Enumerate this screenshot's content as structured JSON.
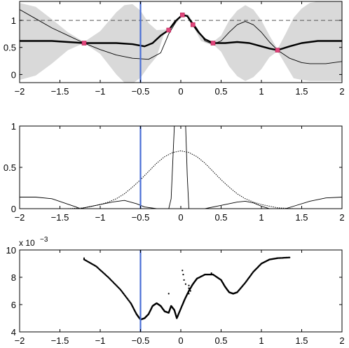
{
  "chart_data": [
    {
      "type": "line",
      "panel": "top",
      "xlim": [
        -2,
        2
      ],
      "ylim": [
        -0.15,
        1.35
      ],
      "x_ticks": [
        -2,
        -1.5,
        -1,
        -0.5,
        0,
        0.5,
        1,
        1.5,
        2
      ],
      "x_tick_labels": [
        "−2",
        "−1.5",
        "−1",
        "−0.5",
        "0",
        "0.5",
        "1",
        "1.5",
        "2"
      ],
      "y_ticks": [
        0,
        0.5,
        1
      ],
      "y_tick_labels": [
        "0",
        "0.5",
        "1"
      ],
      "reference_line": {
        "y": 1,
        "style": "dashed"
      },
      "vertical_marker": {
        "x": -0.5,
        "color": "#4a6fd6"
      },
      "observations": {
        "x": [
          -1.2,
          -0.15,
          0.02,
          0.15,
          0.4,
          1.2
        ],
        "y": [
          0.58,
          0.82,
          1.1,
          0.92,
          0.58,
          0.45
        ],
        "color": "#e0457b"
      },
      "series": [
        {
          "style": "bold-mean",
          "x": [
            -2,
            -1.8,
            -1.6,
            -1.4,
            -1.2,
            -1.0,
            -0.8,
            -0.6,
            -0.45,
            -0.35,
            -0.25,
            -0.15,
            -0.07,
            0.02,
            0.08,
            0.15,
            0.22,
            0.3,
            0.4,
            0.55,
            0.7,
            0.85,
            1.0,
            1.1,
            1.2,
            1.35,
            1.5,
            1.7,
            2.0
          ],
          "y": [
            0.62,
            0.62,
            0.62,
            0.6,
            0.58,
            0.58,
            0.58,
            0.56,
            0.52,
            0.58,
            0.72,
            0.82,
            0.98,
            1.1,
            1.08,
            0.92,
            0.78,
            0.65,
            0.58,
            0.58,
            0.6,
            0.58,
            0.52,
            0.48,
            0.45,
            0.52,
            0.58,
            0.62,
            0.62
          ]
        },
        {
          "style": "thin-function",
          "x": [
            -2,
            -1.8,
            -1.6,
            -1.4,
            -1.2,
            -1.0,
            -0.8,
            -0.6,
            -0.4,
            -0.25,
            -0.15,
            -0.05,
            0.02,
            0.1,
            0.2,
            0.3,
            0.4,
            0.5,
            0.6,
            0.7,
            0.8,
            0.9,
            1.0,
            1.1,
            1.2,
            1.35,
            1.5,
            1.6,
            1.8,
            2.0
          ],
          "y": [
            1.2,
            1.03,
            0.86,
            0.72,
            0.58,
            0.46,
            0.36,
            0.3,
            0.28,
            0.4,
            0.75,
            1.0,
            1.12,
            1.05,
            0.85,
            0.62,
            0.56,
            0.62,
            0.78,
            0.92,
            0.98,
            0.92,
            0.78,
            0.6,
            0.45,
            0.3,
            0.22,
            0.2,
            0.2,
            0.24
          ]
        }
      ],
      "band": {
        "x": [
          -2,
          -1.8,
          -1.6,
          -1.4,
          -1.2,
          -1.0,
          -0.8,
          -0.7,
          -0.6,
          -0.5,
          -0.4,
          -0.3,
          -0.2,
          -0.15,
          -0.05,
          0.02,
          0.1,
          0.15,
          0.25,
          0.35,
          0.4,
          0.5,
          0.6,
          0.7,
          0.8,
          0.9,
          1.0,
          1.1,
          1.2,
          1.3,
          1.4,
          1.5,
          1.6,
          1.7,
          1.8,
          1.9,
          2.0
        ],
        "upper": [
          1.32,
          1.25,
          1.02,
          0.78,
          0.6,
          0.8,
          1.15,
          1.28,
          1.3,
          1.18,
          0.95,
          0.82,
          0.83,
          0.84,
          1.0,
          1.12,
          1.1,
          0.95,
          0.72,
          0.6,
          0.6,
          0.72,
          1.0,
          1.18,
          1.28,
          1.2,
          1.0,
          0.72,
          0.47,
          0.75,
          1.05,
          1.22,
          1.32,
          1.35,
          1.35,
          1.35,
          1.35
        ],
        "lower": [
          -0.1,
          -0.02,
          0.2,
          0.45,
          0.58,
          0.38,
          0.0,
          -0.15,
          -0.17,
          -0.06,
          0.15,
          0.33,
          0.78,
          0.8,
          0.96,
          1.08,
          1.06,
          0.9,
          0.62,
          0.56,
          0.56,
          0.42,
          0.15,
          -0.03,
          -0.12,
          -0.05,
          0.1,
          0.32,
          0.43,
          0.18,
          -0.07,
          -0.1,
          -0.12,
          -0.12,
          -0.12,
          -0.12,
          -0.12
        ],
        "color": "#d9d9d9"
      }
    },
    {
      "type": "line",
      "panel": "middle",
      "xlim": [
        -2,
        2
      ],
      "ylim": [
        0,
        1
      ],
      "x_ticks": [
        -2,
        -1.5,
        -1,
        -0.5,
        0,
        0.5,
        1,
        1.5,
        2
      ],
      "x_tick_labels": [
        "−2",
        "−1.5",
        "−1",
        "−0.5",
        "0",
        "0.5",
        "1",
        "1.5",
        "2"
      ],
      "y_ticks": [
        0,
        0.5,
        1
      ],
      "y_tick_labels": [
        "0",
        "0.5",
        "1"
      ],
      "vertical_marker": {
        "x": -0.5,
        "color": "#4a6fd6"
      },
      "series": [
        {
          "style": "dotted",
          "x": [
            -2,
            -1.8,
            -1.6,
            -1.4,
            -1.2,
            -1.0,
            -0.9,
            -0.8,
            -0.7,
            -0.6,
            -0.5,
            -0.4,
            -0.3,
            -0.2,
            -0.1,
            0.0,
            0.1,
            0.2,
            0.3,
            0.4,
            0.5,
            0.6,
            0.7,
            0.8,
            0.9,
            1.0,
            1.2,
            1.4,
            1.6,
            1.8,
            2.0
          ],
          "y": [
            0.0,
            0.0,
            0.0,
            0.0,
            0.01,
            0.05,
            0.08,
            0.12,
            0.18,
            0.26,
            0.35,
            0.45,
            0.55,
            0.63,
            0.68,
            0.7,
            0.68,
            0.63,
            0.55,
            0.45,
            0.35,
            0.26,
            0.18,
            0.12,
            0.08,
            0.05,
            0.01,
            0.0,
            0.0,
            0.0,
            0.0
          ]
        },
        {
          "style": "solid-thin",
          "x": [
            -2,
            -1.8,
            -1.6,
            -1.45,
            -1.3,
            -1.25,
            -1.15,
            -1.0,
            -0.85,
            -0.7,
            -0.55,
            -0.45,
            -0.3,
            -0.2,
            -0.15,
            -0.12,
            -0.08,
            0.0,
            0.06,
            0.08,
            0.1,
            0.15,
            0.3,
            0.5,
            0.7,
            0.8,
            0.9,
            1.0,
            1.1,
            1.2,
            1.3,
            1.4,
            1.6,
            1.8,
            2.0
          ],
          "y": [
            0.14,
            0.14,
            0.12,
            0.07,
            0.02,
            0.0,
            0.02,
            0.05,
            0.08,
            0.1,
            0.06,
            0.02,
            0.0,
            0.0,
            0.0,
            0.12,
            1.0,
            1.0,
            1.0,
            0.4,
            0.0,
            0.0,
            0.0,
            0.04,
            0.08,
            0.09,
            0.07,
            0.03,
            0.0,
            0.0,
            0.0,
            0.03,
            0.09,
            0.13,
            0.14
          ]
        }
      ]
    },
    {
      "type": "scatter",
      "panel": "bottom",
      "xlim": [
        -2,
        2
      ],
      "ylim": [
        4,
        10
      ],
      "scale_label": "x 10",
      "scale_exponent": "−3",
      "x_ticks": [
        -2,
        -1.5,
        -1,
        -0.5,
        0,
        0.5,
        1,
        1.5,
        2
      ],
      "x_tick_labels": [
        "−2",
        "−1.5",
        "−1",
        "−0.5",
        "0",
        "0.5",
        "1",
        "1.5",
        "2"
      ],
      "y_ticks": [
        4,
        6,
        8,
        10
      ],
      "y_tick_labels": [
        "4",
        "6",
        "8",
        "10"
      ],
      "vertical_marker": {
        "x": -0.5,
        "color": "#4a6fd6"
      },
      "curve": {
        "x": [
          -1.2,
          -1.05,
          -0.9,
          -0.75,
          -0.62,
          -0.55,
          -0.5,
          -0.45,
          -0.4,
          -0.35,
          -0.3,
          -0.25,
          -0.2,
          -0.15,
          -0.12,
          -0.08,
          -0.05,
          0.0,
          0.05,
          0.1,
          0.15,
          0.2,
          0.3,
          0.4,
          0.5,
          0.55,
          0.6,
          0.65,
          0.7,
          0.8,
          0.9,
          1.0,
          1.1,
          1.2,
          1.35
        ],
        "y": [
          9.3,
          8.8,
          8.0,
          7.1,
          6.1,
          5.3,
          4.9,
          5.0,
          5.3,
          5.9,
          6.1,
          5.9,
          5.5,
          5.4,
          5.9,
          5.6,
          5.0,
          5.7,
          6.4,
          7.0,
          7.5,
          7.9,
          8.2,
          8.2,
          7.8,
          7.3,
          6.9,
          6.8,
          6.9,
          7.6,
          8.4,
          9.0,
          9.3,
          9.4,
          9.45
        ]
      },
      "outliers": {
        "x": [
          -0.15,
          0.02,
          0.03,
          0.04,
          0.06,
          0.1,
          0.1,
          0.12,
          0.1
        ],
        "y": [
          6.8,
          8.5,
          8.2,
          7.8,
          7.5,
          7.4,
          7.2,
          7.0,
          6.8
        ]
      },
      "sparse_points": {
        "x": [
          -1.2,
          1.2,
          1.35,
          0.38
        ],
        "y": [
          9.4,
          9.4,
          9.45,
          8.3
        ]
      }
    }
  ]
}
